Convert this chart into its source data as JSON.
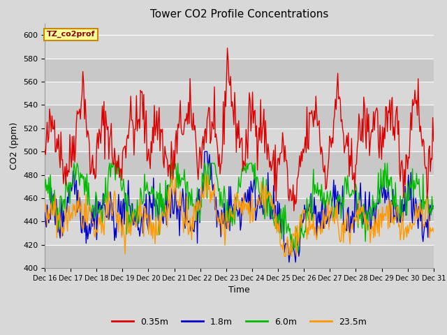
{
  "title": "Tower CO2 Profile Concentrations",
  "xlabel": "Time",
  "ylabel": "CO2 (ppm)",
  "ylim": [
    400,
    610
  ],
  "yticks": [
    400,
    420,
    440,
    460,
    480,
    500,
    520,
    540,
    560,
    580,
    600
  ],
  "annotation_text": "TZ_co2prof",
  "annotation_bg": "#ffff99",
  "annotation_border": "#cc8800",
  "x_tick_labels": [
    "Dec 16",
    "Dec 17",
    "Dec 18",
    "Dec 19",
    "Dec 20",
    "Dec 21",
    "Dec 22",
    "Dec 23",
    "Dec 24",
    "Dec 25",
    "Dec 26",
    "Dec 27",
    "Dec 28",
    "Dec 29",
    "Dec 30",
    "Dec 31"
  ],
  "colors": {
    "0.35m": "#dd0000",
    "1.8m": "#0000cc",
    "6.0m": "#00bb00",
    "23.5m": "#ff9900"
  },
  "bg_color": "#d8d8d8",
  "plot_bg": "#d8d8d8",
  "grid_color": "#ffffff",
  "seed": 42,
  "n_points": 480,
  "figsize": [
    6.4,
    4.8
  ],
  "dpi": 100
}
